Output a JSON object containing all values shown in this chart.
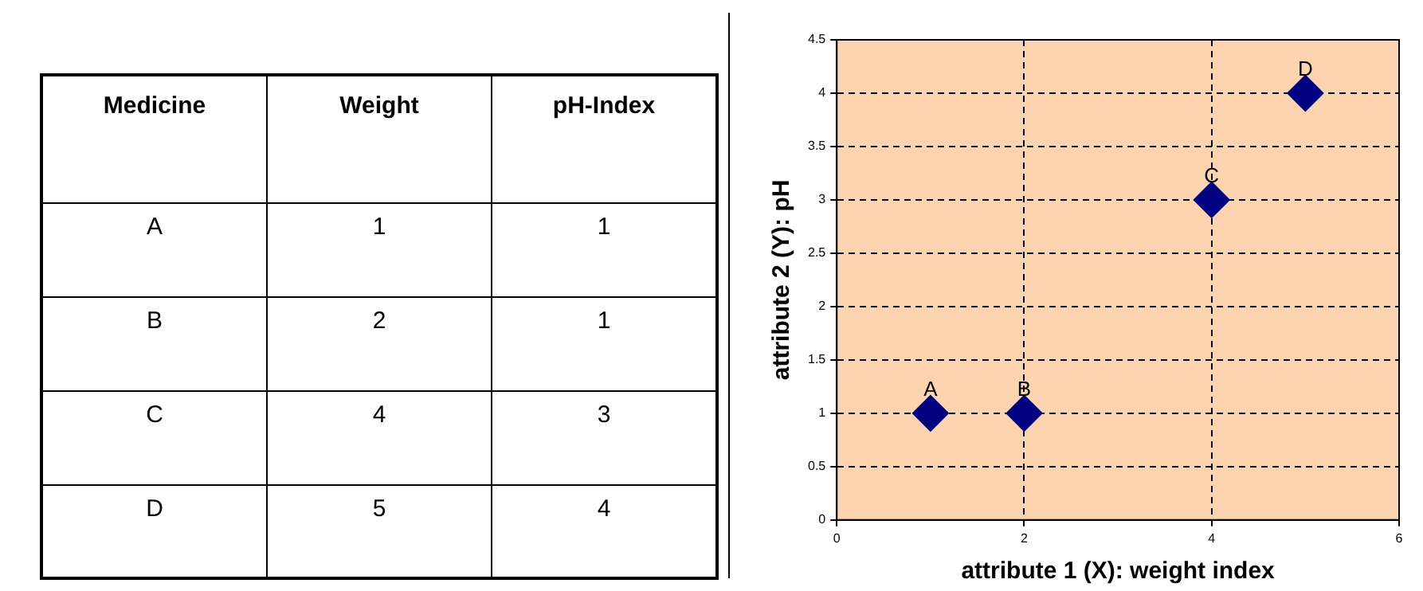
{
  "chart_data": [
    {
      "type": "other",
      "legend_title": "Medicine",
      "categories": [
        "A",
        "B",
        "C",
        "D"
      ],
      "data_labels": true,
      "series": [
        {
          "name": "Weight",
          "values": [
            1,
            2,
            4,
            5
          ]
        },
        {
          "name": "pH-Index",
          "values": [
            1,
            1,
            3,
            4
          ]
        }
      ]
    },
    {
      "type": "scatter",
      "xlabel": "attribute 1 (X): weight index",
      "ylabel": "attribute 2 (Y): pH",
      "x": [
        1,
        2,
        4,
        5
      ],
      "series": [
        {
          "color": "#000080",
          "values": [
            1,
            1,
            3,
            4
          ]
        }
      ],
      "xlim": [
        0,
        6
      ],
      "xticks": [
        0,
        2,
        4,
        6
      ],
      "ylim": [
        0,
        4.5
      ],
      "yticks": [
        0,
        0.5,
        1,
        1.5,
        2,
        2.5,
        3,
        3.5,
        4,
        4.5
      ],
      "grid": true,
      "legend": false,
      "marker": "diamond",
      "annotations": [
        {
          "text": "A",
          "x": 1,
          "y": 1
        },
        {
          "text": "B",
          "x": 2,
          "y": 1
        },
        {
          "text": "C",
          "x": 4,
          "y": 3
        },
        {
          "text": "D",
          "x": 5,
          "y": 4
        }
      ]
    }
  ]
}
